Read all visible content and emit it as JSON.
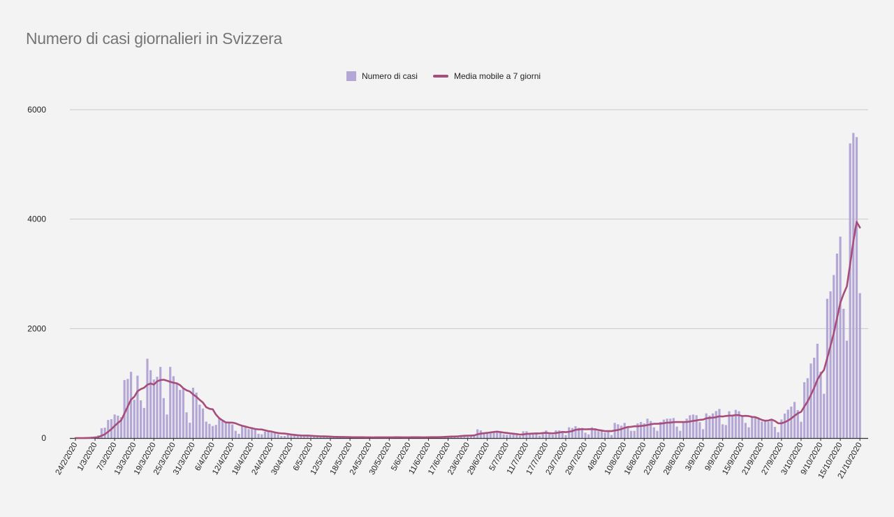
{
  "chart_data": {
    "type": "bar",
    "title": "Numero di casi giornalieri in Svizzera",
    "xlabel": "",
    "ylabel": "",
    "ylim": [
      0,
      6000
    ],
    "y_ticks": [
      0,
      2000,
      4000,
      6000
    ],
    "y_tick_labels": [
      "0",
      "2000",
      "4000",
      "6000"
    ],
    "grid": true,
    "legend_position": "top-center",
    "start_date": "24/2/2020",
    "end_date": "21/10/2020",
    "x_tick_every_days": 6,
    "x_tick_labels": [
      "24/2/2020",
      "1/3/2020",
      "7/3/2020",
      "13/3/2020",
      "19/3/2020",
      "25/3/2020",
      "31/3/2020",
      "6/4/2020",
      "12/4/2020",
      "18/4/2020",
      "24/4/2020",
      "30/4/2020",
      "6/5/2020",
      "12/5/2020",
      "18/5/2020",
      "24/5/2020",
      "30/5/2020",
      "5/6/2020",
      "11/6/2020",
      "17/6/2020",
      "23/6/2020",
      "29/6/2020",
      "5/7/2020",
      "11/7/2020",
      "17/7/2020",
      "23/7/2020",
      "29/7/2020",
      "4/8/2020",
      "10/8/2020",
      "16/8/2020",
      "22/8/2020",
      "28/8/2020",
      "3/9/2020",
      "9/9/2020",
      "15/9/2020",
      "21/9/2020",
      "27/9/2020",
      "3/10/2020",
      "9/10/2020",
      "15/10/2020",
      "21/10/2020"
    ],
    "series": [
      {
        "name": "Numero di casi",
        "kind": "bar",
        "color": "#b4a7d6",
        "values": [
          0,
          1,
          1,
          5,
          10,
          15,
          30,
          50,
          180,
          190,
          330,
          345,
          430,
          410,
          380,
          1060,
          1080,
          1210,
          700,
          1140,
          690,
          550,
          1450,
          1240,
          1070,
          1120,
          1300,
          730,
          430,
          1300,
          1130,
          1000,
          880,
          900,
          470,
          280,
          920,
          830,
          610,
          540,
          300,
          260,
          220,
          240,
          370,
          320,
          290,
          281,
          250,
          132,
          77,
          226,
          217,
          162,
          196,
          153,
          77,
          68,
          119,
          119,
          98,
          90,
          68,
          38,
          38,
          68,
          55,
          50,
          45,
          40,
          30,
          35,
          40,
          30,
          25,
          20,
          30,
          25,
          20,
          15,
          20,
          15,
          20,
          18,
          12,
          10,
          15,
          20,
          15,
          10,
          12,
          8,
          15,
          20,
          18,
          12,
          10,
          15,
          20,
          15,
          10,
          12,
          15,
          18,
          20,
          15,
          10,
          12,
          20,
          25,
          18,
          20,
          30,
          25,
          35,
          40,
          30,
          45,
          50,
          60,
          55,
          40,
          60,
          160,
          140,
          100,
          110,
          110,
          95,
          110,
          100,
          68,
          60,
          60,
          60,
          55,
          40,
          124,
          124,
          90,
          90,
          80,
          45,
          90,
          140,
          90,
          60,
          140,
          140,
          124,
          55,
          196,
          183,
          217,
          187,
          183,
          98,
          68,
          196,
          175,
          124,
          124,
          98,
          110,
          55,
          277,
          251,
          226,
          277,
          217,
          132,
          132,
          268,
          294,
          268,
          354,
          311,
          196,
          132,
          294,
          337,
          354,
          354,
          366,
          209,
          132,
          290,
          354,
          417,
          430,
          417,
          290,
          162,
          451,
          409,
          451,
          494,
          532,
          251,
          238,
          490,
          417,
          515,
          490,
          417,
          277,
          196,
          388,
          388,
          354,
          302,
          315,
          298,
          319,
          204,
          106,
          340,
          447,
          519,
          575,
          660,
          511,
          298,
          1021,
          1094,
          1362,
          1468,
          1724,
          1213,
          809,
          2545,
          2681,
          2979,
          3371,
          3681,
          2362,
          1779,
          5384,
          5575,
          5499,
          2647
        ]
      },
      {
        "name": "Media mobile a 7 giorni",
        "kind": "line",
        "color": "#a64d79",
        "window_days": 7
      }
    ]
  }
}
